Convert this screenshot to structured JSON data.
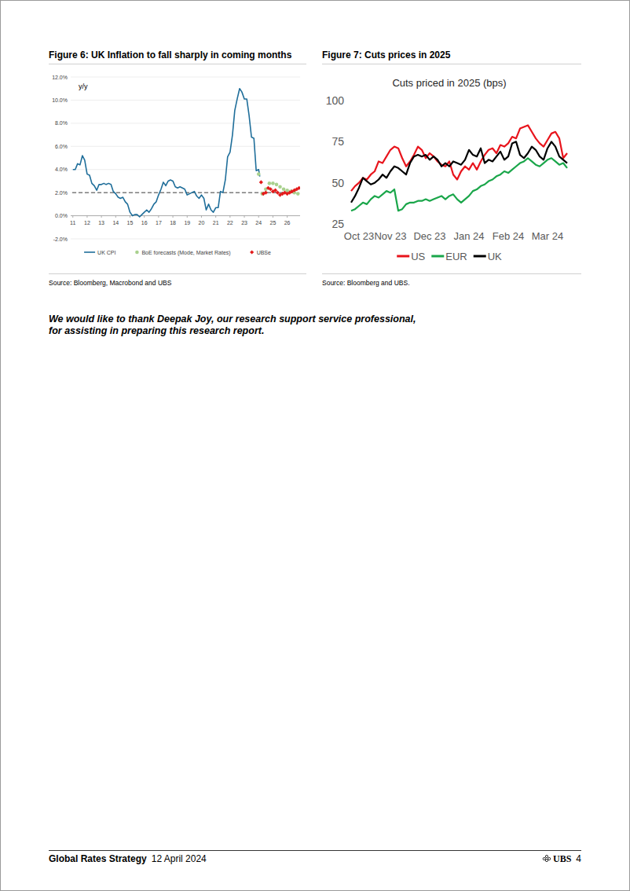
{
  "chart_data": [
    {
      "type": "line",
      "title": "Figure 6: UK Inflation to fall sharply in coming months",
      "y_label": "y/y",
      "source": "Source: Bloomberg, Macrobond and UBS",
      "xlim": [
        2010.85,
        2026.9
      ],
      "xticks": [
        {
          "value": 2011,
          "label": "11"
        },
        {
          "value": 2012,
          "label": "12"
        },
        {
          "value": 2013,
          "label": "13"
        },
        {
          "value": 2014,
          "label": "14"
        },
        {
          "value": 2015,
          "label": "15"
        },
        {
          "value": 2016,
          "label": "16"
        },
        {
          "value": 2017,
          "label": "17"
        },
        {
          "value": 2018,
          "label": "18"
        },
        {
          "value": 2019,
          "label": "19"
        },
        {
          "value": 2020,
          "label": "20"
        },
        {
          "value": 2021,
          "label": "21"
        },
        {
          "value": 2022,
          "label": "22"
        },
        {
          "value": 2023,
          "label": "23"
        },
        {
          "value": 2024,
          "label": "24"
        },
        {
          "value": 2025,
          "label": "25"
        },
        {
          "value": 2026,
          "label": "26"
        }
      ],
      "ylim": [
        -2,
        12
      ],
      "yticks": [
        {
          "value": -2,
          "label": "-2.0%"
        },
        {
          "value": 0,
          "label": "0.0%"
        },
        {
          "value": 2,
          "label": "2.0%"
        },
        {
          "value": 4,
          "label": "4.0%"
        },
        {
          "value": 6,
          "label": "6.0%"
        },
        {
          "value": 8,
          "label": "8.0%"
        },
        {
          "value": 10,
          "label": "10.0%"
        },
        {
          "value": 12,
          "label": "12.0%"
        }
      ],
      "grid": true,
      "reference_line": 2,
      "legend": "bottom",
      "series": [
        {
          "name": "UK CPI",
          "type": "line",
          "color": "#1f6e9a",
          "x": [
            2011.0,
            2011.17,
            2011.33,
            2011.5,
            2011.67,
            2011.83,
            2012.0,
            2012.17,
            2012.33,
            2012.5,
            2012.67,
            2012.83,
            2013.0,
            2013.17,
            2013.33,
            2013.5,
            2013.67,
            2013.83,
            2014.0,
            2014.17,
            2014.33,
            2014.5,
            2014.67,
            2014.83,
            2015.0,
            2015.17,
            2015.33,
            2015.5,
            2015.67,
            2015.83,
            2016.0,
            2016.17,
            2016.33,
            2016.5,
            2016.67,
            2016.83,
            2017.0,
            2017.17,
            2017.33,
            2017.5,
            2017.67,
            2017.83,
            2018.0,
            2018.17,
            2018.33,
            2018.5,
            2018.67,
            2018.83,
            2019.0,
            2019.17,
            2019.33,
            2019.5,
            2019.67,
            2019.83,
            2020.0,
            2020.17,
            2020.33,
            2020.5,
            2020.67,
            2020.83,
            2021.0,
            2021.17,
            2021.33,
            2021.5,
            2021.67,
            2021.83,
            2022.0,
            2022.17,
            2022.33,
            2022.5,
            2022.67,
            2022.83,
            2023.0,
            2023.17,
            2023.33,
            2023.5,
            2023.67,
            2023.83,
            2024.0,
            2024.08
          ],
          "values": [
            4.0,
            4.0,
            4.5,
            4.4,
            5.2,
            4.8,
            3.6,
            3.5,
            2.8,
            2.6,
            2.2,
            2.7,
            2.7,
            2.8,
            2.7,
            2.8,
            2.7,
            2.1,
            1.9,
            1.6,
            1.5,
            1.6,
            1.2,
            1.0,
            0.3,
            0.0,
            0.1,
            0.1,
            -0.1,
            0.1,
            0.3,
            0.5,
            0.3,
            0.6,
            1.0,
            1.2,
            1.8,
            2.3,
            2.9,
            2.6,
            3.0,
            3.1,
            3.0,
            2.5,
            2.4,
            2.5,
            2.4,
            2.3,
            1.8,
            1.9,
            2.0,
            2.1,
            1.7,
            1.5,
            1.8,
            1.5,
            0.5,
            1.0,
            0.5,
            0.3,
            0.7,
            0.7,
            2.1,
            2.0,
            3.1,
            5.1,
            5.5,
            7.0,
            9.1,
            10.1,
            11.0,
            10.7,
            10.1,
            10.1,
            8.7,
            6.8,
            6.7,
            3.9,
            4.0,
            3.4
          ]
        },
        {
          "name": "BoE forecasts (Mode, Market Rates)",
          "type": "scatter",
          "marker": "circle",
          "color": "#a9d18e",
          "x": [
            2024.0,
            2024.25,
            2024.5,
            2024.75,
            2025.0,
            2025.25,
            2025.5,
            2025.75,
            2026.0,
            2026.25,
            2026.5,
            2026.75
          ],
          "values": [
            3.6,
            1.9,
            2.3,
            2.8,
            2.8,
            2.7,
            2.5,
            2.3,
            2.2,
            2.1,
            2.0,
            1.9
          ]
        },
        {
          "name": "UBSe",
          "type": "scatter",
          "marker": "diamond",
          "color": "#e31b1b",
          "x": [
            2024.17,
            2024.33,
            2024.5,
            2024.67,
            2024.83,
            2025.0,
            2025.17,
            2025.33,
            2025.5,
            2025.67,
            2025.83,
            2026.0,
            2026.17,
            2026.33,
            2026.5,
            2026.67,
            2026.83
          ],
          "values": [
            2.9,
            1.9,
            2.0,
            2.4,
            2.3,
            2.1,
            2.2,
            2.0,
            1.8,
            1.9,
            2.0,
            1.9,
            2.0,
            2.1,
            2.2,
            2.3,
            2.4
          ]
        }
      ]
    },
    {
      "type": "line",
      "title": "Figure 7: Cuts prices in 2025",
      "subtitle": "Cuts priced in 2025 (bps)",
      "source": "Source: Bloomberg and UBS.",
      "categories": [
        null,
        null,
        "Oct 23",
        null,
        null,
        null,
        null,
        null,
        null,
        null,
        "Nov 23",
        null,
        null,
        null,
        null,
        null,
        null,
        null,
        null,
        null,
        "Dec 23",
        null,
        null,
        null,
        null,
        null,
        null,
        null,
        null,
        null,
        "Jan 24",
        null,
        null,
        null,
        null,
        null,
        null,
        null,
        null,
        null,
        "Feb 24",
        null,
        null,
        null,
        null,
        null,
        null,
        null,
        null,
        null,
        "Mar 24",
        null,
        null,
        null,
        null,
        null
      ],
      "ylim": [
        25,
        100
      ],
      "yticks": [
        25,
        50,
        75,
        100
      ],
      "legend": "bottom",
      "series": [
        {
          "name": "US",
          "color": "#e8141c",
          "values": [
            45,
            48,
            50,
            53,
            52,
            55,
            57,
            63,
            62,
            66,
            70,
            72,
            71,
            65,
            60,
            63,
            67,
            72,
            70,
            65,
            68,
            66,
            63,
            61,
            60,
            63,
            55,
            52,
            57,
            60,
            58,
            62,
            58,
            63,
            67,
            70,
            71,
            68,
            73,
            72,
            74,
            78,
            77,
            83,
            84,
            85,
            81,
            77,
            74,
            72,
            76,
            80,
            81,
            77,
            65,
            68
          ]
        },
        {
          "name": "EUR",
          "color": "#1aa64a",
          "values": [
            33,
            34,
            36,
            38,
            37,
            40,
            42,
            41,
            43,
            45,
            44,
            46,
            33,
            34,
            37,
            38,
            38,
            39,
            39,
            40,
            39,
            40,
            41,
            42,
            40,
            42,
            43,
            40,
            38,
            40,
            42,
            45,
            46,
            48,
            49,
            51,
            52,
            54,
            55,
            57,
            56,
            58,
            60,
            62,
            63,
            65,
            63,
            61,
            60,
            62,
            64,
            65,
            63,
            61,
            62,
            59
          ]
        },
        {
          "name": "UK",
          "color": "#000000",
          "values": [
            38,
            42,
            47,
            53,
            51,
            49,
            50,
            52,
            55,
            53,
            57,
            60,
            59,
            57,
            55,
            62,
            66,
            67,
            66,
            67,
            64,
            66,
            64,
            60,
            62,
            60,
            63,
            62,
            61,
            64,
            70,
            67,
            66,
            71,
            62,
            64,
            63,
            66,
            69,
            64,
            66,
            74,
            75,
            67,
            65,
            68,
            72,
            70,
            66,
            64,
            71,
            75,
            72,
            66,
            64,
            62
          ]
        }
      ]
    }
  ],
  "document": {
    "acknowledgment": [
      "We would like to thank Deepak Joy, our research support service professional,",
      "for assisting in preparing this research report."
    ],
    "footer": {
      "report": "Global Rates Strategy",
      "date": "12 April 2024",
      "brand": "UBS",
      "page": 4
    }
  }
}
